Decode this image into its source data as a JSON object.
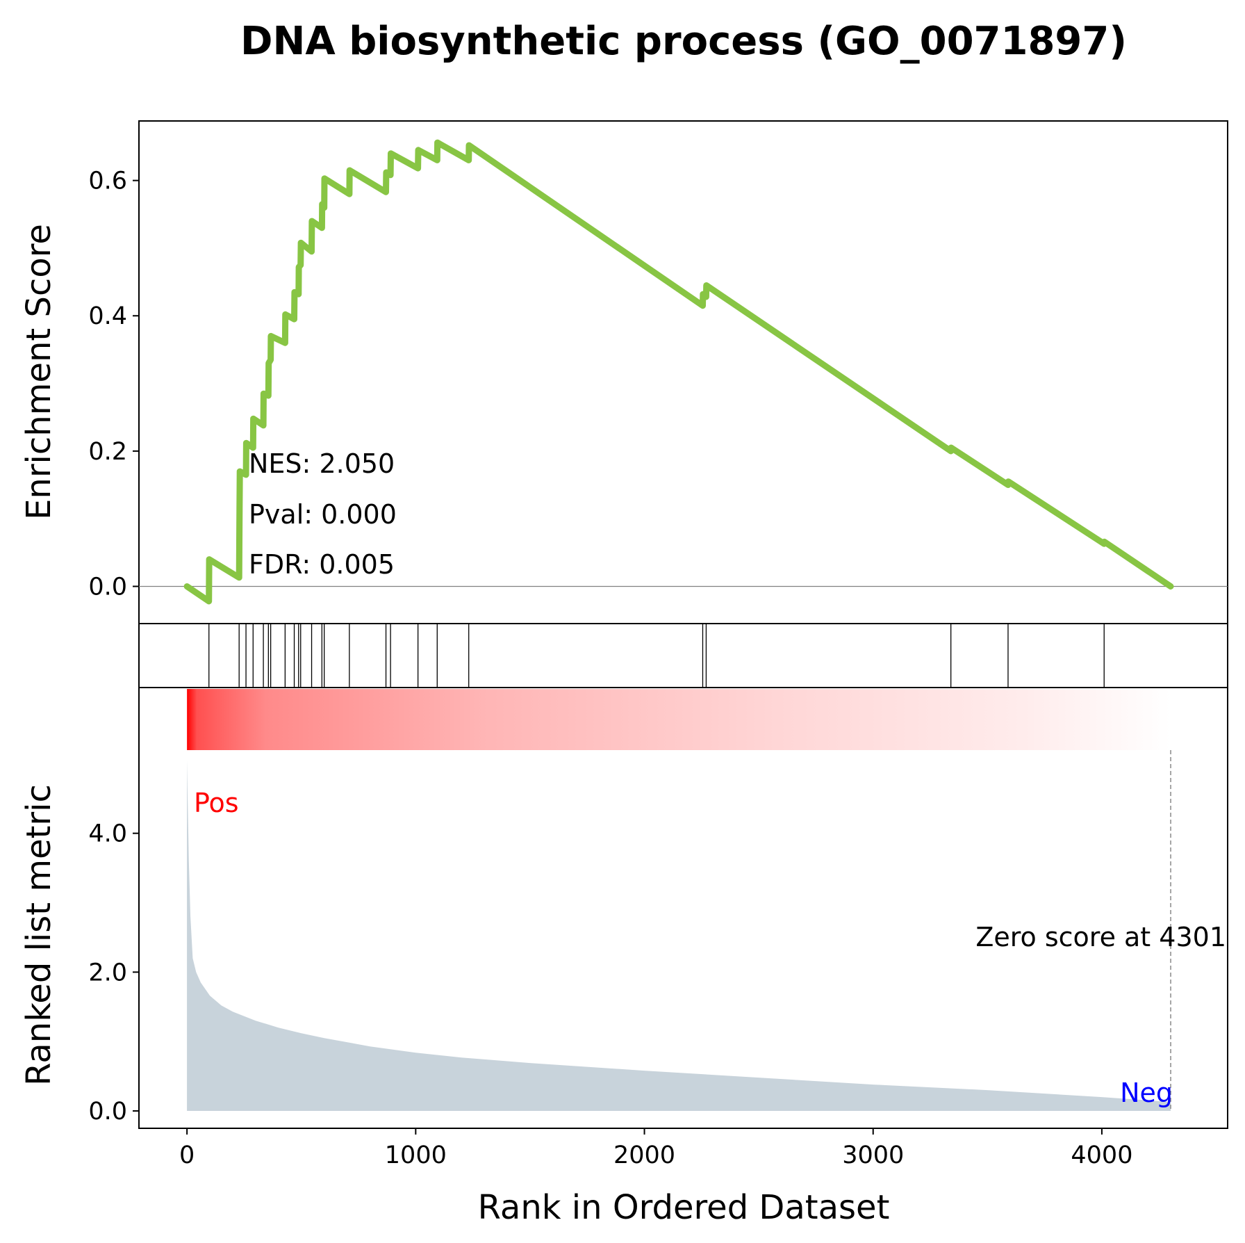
{
  "chart_data": {
    "type": "line",
    "title": "DNA biosynthetic process (GO_0071897)",
    "xlabel": "Rank in Ordered Dataset",
    "xlim": [
      -210,
      4550
    ],
    "xticks": [
      0,
      1000,
      2000,
      3000,
      4000
    ],
    "es_panel": {
      "ylabel": "Enrichment Score",
      "ylim": [
        -0.055,
        0.688
      ],
      "yticks": [
        "0.0",
        "0.2",
        "0.4",
        "0.6"
      ],
      "ytick_values": [
        0.0,
        0.2,
        0.4,
        0.6
      ],
      "line_color": "#88C544",
      "points": [
        [
          0,
          0.0
        ],
        [
          96,
          -0.022
        ],
        [
          97,
          0.04
        ],
        [
          228,
          0.013
        ],
        [
          229,
          0.068
        ],
        [
          230,
          0.115
        ],
        [
          231,
          0.17
        ],
        [
          258,
          0.165
        ],
        [
          259,
          0.212
        ],
        [
          289,
          0.205
        ],
        [
          290,
          0.248
        ],
        [
          334,
          0.238
        ],
        [
          335,
          0.285
        ],
        [
          356,
          0.282
        ],
        [
          357,
          0.33
        ],
        [
          366,
          0.335
        ],
        [
          367,
          0.37
        ],
        [
          429,
          0.36
        ],
        [
          430,
          0.402
        ],
        [
          469,
          0.395
        ],
        [
          470,
          0.435
        ],
        [
          488,
          0.432
        ],
        [
          489,
          0.472
        ],
        [
          497,
          0.475
        ],
        [
          498,
          0.508
        ],
        [
          545,
          0.495
        ],
        [
          546,
          0.54
        ],
        [
          590,
          0.53
        ],
        [
          591,
          0.565
        ],
        [
          600,
          0.56
        ],
        [
          601,
          0.603
        ],
        [
          710,
          0.58
        ],
        [
          711,
          0.615
        ],
        [
          870,
          0.583
        ],
        [
          871,
          0.612
        ],
        [
          890,
          0.608
        ],
        [
          891,
          0.64
        ],
        [
          1010,
          0.618
        ],
        [
          1011,
          0.645
        ],
        [
          1094,
          0.63
        ],
        [
          1095,
          0.656
        ],
        [
          1232,
          0.63
        ],
        [
          1233,
          0.652
        ],
        [
          2255,
          0.415
        ],
        [
          2256,
          0.432
        ],
        [
          2270,
          0.428
        ],
        [
          2271,
          0.445
        ],
        [
          3340,
          0.2
        ],
        [
          3341,
          0.205
        ],
        [
          3590,
          0.15
        ],
        [
          3591,
          0.155
        ],
        [
          4010,
          0.063
        ],
        [
          4011,
          0.066
        ],
        [
          4301,
          0.0
        ]
      ],
      "annotations": [
        "NES: 2.050",
        "Pval: 0.000",
        "FDR: 0.005"
      ]
    },
    "hits_panel": {
      "hit_ranks": [
        96,
        228,
        258,
        289,
        334,
        356,
        366,
        429,
        469,
        488,
        497,
        545,
        590,
        600,
        710,
        870,
        890,
        1010,
        1094,
        1232,
        2255,
        2270,
        3340,
        3590,
        4010
      ]
    },
    "rank_panel": {
      "ylabel": "Ranked list metric",
      "ylim": [
        -0.25,
        6.1
      ],
      "yticks": [
        "0.0",
        "2.0",
        "4.0"
      ],
      "ytick_values": [
        0.0,
        2.0,
        4.0
      ],
      "fill_color": "#C8D3DB",
      "metric_curve": [
        [
          0,
          5.05
        ],
        [
          8,
          3.6
        ],
        [
          15,
          2.8
        ],
        [
          25,
          2.2
        ],
        [
          40,
          2.0
        ],
        [
          60,
          1.85
        ],
        [
          100,
          1.66
        ],
        [
          150,
          1.52
        ],
        [
          200,
          1.43
        ],
        [
          300,
          1.3
        ],
        [
          400,
          1.2
        ],
        [
          500,
          1.12
        ],
        [
          600,
          1.05
        ],
        [
          800,
          0.93
        ],
        [
          1000,
          0.84
        ],
        [
          1200,
          0.77
        ],
        [
          1500,
          0.69
        ],
        [
          2000,
          0.58
        ],
        [
          2500,
          0.48
        ],
        [
          3000,
          0.38
        ],
        [
          3500,
          0.3
        ],
        [
          4000,
          0.2
        ],
        [
          4301,
          0.13
        ]
      ],
      "pos_label": "Pos",
      "neg_label": "Neg",
      "pos_color": "#FF0000",
      "neg_color": "#0000FF",
      "zero_score_label": "Zero score at 4301",
      "zero_score_rank": 4301,
      "gradient_colors": [
        "#FF0000",
        "#FF8080",
        "#FFB3B3",
        "#FFD9D9",
        "#FFFFFF"
      ]
    }
  }
}
